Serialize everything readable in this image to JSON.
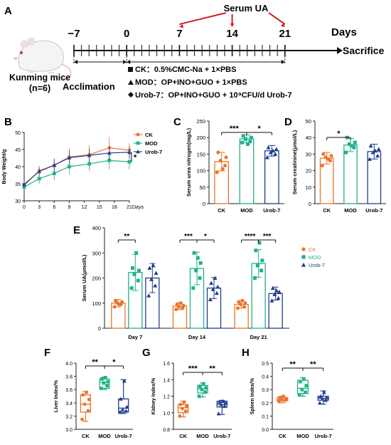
{
  "colors": {
    "ck": "#E8742A",
    "mod": "#21B28A",
    "urob": "#1F3D8F",
    "arrow": "#D32020",
    "axis": "#222222"
  },
  "panel_a": {
    "letter": "A",
    "serum_ua": "Serum UA",
    "timeline": [
      {
        "label": "−7",
        "day": -7
      },
      {
        "label": "0",
        "day": 0
      },
      {
        "label": "7",
        "day": 7
      },
      {
        "label": "14",
        "day": 14
      },
      {
        "label": "21",
        "day": 21
      }
    ],
    "arrow_days": [
      7,
      14,
      21
    ],
    "days_label": "Days",
    "sacrifice": "Sacrifice",
    "mouse_label": "Kunming mice",
    "n_label": "(n=6)",
    "acclimation": "Acclimation",
    "groups": [
      {
        "marker": "square",
        "text": "CK：0.5%CMC-Na + 1×PBS"
      },
      {
        "marker": "triangle",
        "text": "MOD：OP+INO+GUO + 1×PBS"
      },
      {
        "marker": "diamond",
        "text": "Urob-7：OP+INO+GUO + 10⁹CFU/d Urob-7"
      }
    ]
  },
  "chart_data": [
    {
      "id": "B",
      "type": "line",
      "ylabel": "Body Weight/g",
      "xlabel_suffix": "Days",
      "x": [
        0,
        3,
        6,
        9,
        13,
        17,
        21
      ],
      "x_ticks": [
        "0",
        "3",
        "6",
        "9",
        "12",
        "15",
        "18",
        "21"
      ],
      "ylim": [
        30,
        50
      ],
      "y_ticks": [
        "30",
        "35",
        "40",
        "45",
        "50"
      ],
      "legend": [
        "CK",
        "MOD",
        "Urob-7"
      ],
      "legend_position": "right",
      "series": [
        {
          "name": "CK",
          "values": [
            34.5,
            38.8,
            40.4,
            42.8,
            43.5,
            45.5,
            44.8
          ],
          "err": [
            0.8,
            1.5,
            2.0,
            2.5,
            2.8,
            3.2,
            2.0
          ]
        },
        {
          "name": "MOD",
          "values": [
            34.0,
            36.5,
            38.0,
            40.0,
            40.8,
            41.8,
            41.4
          ],
          "err": [
            0.8,
            1.5,
            2.0,
            2.2,
            2.0,
            2.5,
            2.2
          ]
        },
        {
          "name": "Urob-7",
          "values": [
            34.8,
            38.6,
            40.4,
            42.6,
            43.3,
            44.0,
            44.2
          ],
          "err": [
            0.8,
            1.2,
            1.8,
            2.0,
            2.0,
            2.0,
            1.8
          ]
        }
      ],
      "annotations": [
        "*"
      ]
    },
    {
      "id": "C",
      "type": "bar",
      "ylabel": "Serum urea nitrogen(mg/L)",
      "categories": [
        "CK",
        "MOD",
        "Urob-7"
      ],
      "values": [
        127,
        196,
        160
      ],
      "err": [
        28,
        12,
        16
      ],
      "points": [
        [
          95,
          115,
          130,
          140,
          155,
          105
        ],
        [
          185,
          188,
          195,
          200,
          205,
          180
        ],
        [
          140,
          150,
          155,
          165,
          170,
          160
        ]
      ],
      "ylim": [
        0,
        250
      ],
      "y_ticks": [
        "0",
        "50",
        "100",
        "150",
        "200",
        "250"
      ],
      "significance": [
        {
          "from": 0,
          "to": 1,
          "label": "***"
        },
        {
          "from": 1,
          "to": 2,
          "label": "*"
        }
      ]
    },
    {
      "id": "D",
      "type": "bar",
      "ylabel": "Serum creatinine(μmol/L)",
      "categories": [
        "CK",
        "MOD",
        "Urob-7"
      ],
      "values": [
        27.5,
        35.5,
        31.5
      ],
      "err": [
        3.5,
        4.0,
        4.5
      ],
      "points": [
        [
          23,
          26,
          28,
          29,
          30,
          27
        ],
        [
          31,
          34,
          36,
          37,
          40,
          35
        ],
        [
          27,
          29,
          31,
          33,
          35,
          32
        ]
      ],
      "ylim": [
        0,
        50
      ],
      "y_ticks": [
        "0",
        "10",
        "20",
        "30",
        "40",
        "50"
      ],
      "significance": [
        {
          "from": 0,
          "to": 1,
          "label": "*"
        }
      ]
    },
    {
      "id": "E",
      "type": "bar",
      "ylabel": "Serum UA(μmol/L)",
      "categories": [
        "Day 7",
        "Day 14",
        "Day 21"
      ],
      "ylim": [
        0,
        400
      ],
      "y_ticks": [
        "0",
        "100",
        "200",
        "300",
        "400"
      ],
      "legend": [
        "CK",
        "MOD",
        "Urob-7"
      ],
      "legend_position": "right",
      "series": [
        {
          "name": "CK",
          "values": [
            100,
            88,
            95
          ],
          "err": [
            15,
            14,
            15
          ],
          "points": [
            [
              85,
              95,
              100,
              105,
              110,
              95
            ],
            [
              75,
              80,
              85,
              90,
              95,
              100
            ],
            [
              80,
              85,
              95,
              100,
              105,
              110
            ]
          ]
        },
        {
          "name": "MOD",
          "values": [
            222,
            238,
            258
          ],
          "err": [
            72,
            65,
            55
          ],
          "points": [
            [
              160,
              190,
              215,
              230,
              240,
              300
            ],
            [
              160,
              200,
              230,
              260,
              300,
              280
            ],
            [
              200,
              230,
              250,
              270,
              310,
              340
            ]
          ]
        },
        {
          "name": "Urob-7",
          "values": [
            200,
            160,
            138
          ],
          "err": [
            58,
            42,
            26
          ],
          "points": [
            [
              130,
              170,
              195,
              220,
              240,
              250
            ],
            [
              115,
              140,
              155,
              165,
              180,
              200
            ],
            [
              110,
              120,
              135,
              145,
              160,
              150
            ]
          ]
        }
      ],
      "significance": [
        {
          "group": 0,
          "from": 0,
          "to": 1,
          "label": "**"
        },
        {
          "group": 1,
          "from": 0,
          "to": 1,
          "label": "***"
        },
        {
          "group": 1,
          "from": 1,
          "to": 2,
          "label": "*"
        },
        {
          "group": 2,
          "from": 0,
          "to": 1,
          "label": "****"
        },
        {
          "group": 2,
          "from": 1,
          "to": 2,
          "label": "***"
        }
      ]
    },
    {
      "id": "F",
      "type": "box",
      "ylabel": "Liver Index/%",
      "categories": [
        "CK",
        "MOD",
        "Urob-7"
      ],
      "ylim": [
        3.0,
        4.0
      ],
      "y_ticks": [
        "3.0",
        "3.2",
        "3.4",
        "3.6",
        "3.8",
        "4.0"
      ],
      "boxes": [
        {
          "min": 3.12,
          "q1": 3.26,
          "median": 3.38,
          "q3": 3.52,
          "max": 3.57
        },
        {
          "min": 3.6,
          "q1": 3.62,
          "median": 3.71,
          "q3": 3.76,
          "max": 3.79
        },
        {
          "min": 3.24,
          "q1": 3.26,
          "median": 3.32,
          "q3": 3.46,
          "max": 3.75
        }
      ],
      "points": [
        [
          3.15,
          3.28,
          3.38,
          3.45,
          3.52,
          3.56
        ],
        [
          3.62,
          3.66,
          3.7,
          3.72,
          3.76,
          3.78
        ],
        [
          3.26,
          3.28,
          3.3,
          3.34,
          3.46,
          3.73
        ]
      ],
      "significance": [
        {
          "from": 0,
          "to": 1,
          "label": "**"
        },
        {
          "from": 1,
          "to": 2,
          "label": "*"
        }
      ]
    },
    {
      "id": "G",
      "type": "box",
      "ylabel": "Kidney Index/%",
      "categories": [
        "CK",
        "MOD",
        "Urob-7"
      ],
      "ylim": [
        0.8,
        1.6
      ],
      "y_ticks": [
        "0.8",
        "1.0",
        "1.2",
        "1.4",
        "1.6"
      ],
      "boxes": [
        {
          "min": 0.95,
          "q1": 1.0,
          "median": 1.06,
          "q3": 1.1,
          "max": 1.14
        },
        {
          "min": 1.19,
          "q1": 1.24,
          "median": 1.29,
          "q3": 1.33,
          "max": 1.36
        },
        {
          "min": 0.98,
          "q1": 1.07,
          "median": 1.1,
          "q3": 1.14,
          "max": 1.15
        }
      ],
      "points": [
        [
          0.96,
          1.02,
          1.05,
          1.08,
          1.1,
          1.13
        ],
        [
          1.2,
          1.25,
          1.28,
          1.3,
          1.32,
          1.35
        ],
        [
          0.99,
          1.08,
          1.1,
          1.12,
          1.13,
          1.14
        ]
      ],
      "significance": [
        {
          "from": 0,
          "to": 1,
          "label": "***"
        },
        {
          "from": 1,
          "to": 2,
          "label": "**"
        }
      ]
    },
    {
      "id": "H",
      "type": "box",
      "ylabel": "Spleen Index/%",
      "categories": [
        "CK",
        "MOD",
        "Urob-7"
      ],
      "ylim": [
        0.0,
        0.5
      ],
      "y_ticks": [
        "0.0",
        "0.1",
        "0.2",
        "0.3",
        "0.4",
        "0.5"
      ],
      "boxes": [
        {
          "min": 0.2,
          "q1": 0.215,
          "median": 0.225,
          "q3": 0.24,
          "max": 0.25
        },
        {
          "min": 0.25,
          "q1": 0.27,
          "median": 0.31,
          "q3": 0.37,
          "max": 0.39
        },
        {
          "min": 0.19,
          "q1": 0.22,
          "median": 0.235,
          "q3": 0.25,
          "max": 0.29
        }
      ],
      "points": [
        [
          0.21,
          0.22,
          0.23,
          0.23,
          0.24,
          0.25
        ],
        [
          0.26,
          0.28,
          0.3,
          0.33,
          0.36,
          0.38
        ],
        [
          0.2,
          0.22,
          0.23,
          0.24,
          0.25,
          0.28
        ]
      ],
      "significance": [
        {
          "from": 0,
          "to": 1,
          "label": "**"
        },
        {
          "from": 1,
          "to": 2,
          "label": "**"
        }
      ]
    }
  ]
}
